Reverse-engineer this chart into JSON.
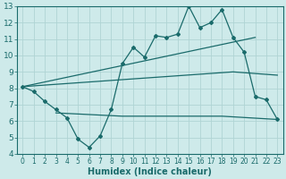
{
  "xlabel": "Humidex (Indice chaleur)",
  "bg_color": "#ceeaea",
  "line_color": "#1a6b6b",
  "grid_color": "#afd4d4",
  "xlim": [
    -0.5,
    23.5
  ],
  "ylim": [
    4,
    13
  ],
  "xticks": [
    0,
    1,
    2,
    3,
    4,
    5,
    6,
    7,
    8,
    9,
    10,
    11,
    12,
    13,
    14,
    15,
    16,
    17,
    18,
    19,
    20,
    21,
    22,
    23
  ],
  "yticks": [
    4,
    5,
    6,
    7,
    8,
    9,
    10,
    11,
    12,
    13
  ],
  "line1_x": [
    0,
    1,
    2,
    3,
    4,
    5,
    6,
    7,
    8,
    9,
    10,
    11,
    12,
    13,
    14,
    15,
    16,
    17,
    18,
    19,
    20,
    21,
    22,
    23
  ],
  "line1_y": [
    8.1,
    7.8,
    7.2,
    6.7,
    6.2,
    4.9,
    4.4,
    5.1,
    6.7,
    9.5,
    10.5,
    9.9,
    11.2,
    11.1,
    11.3,
    13.0,
    11.7,
    12.0,
    12.8,
    11.1,
    10.2,
    7.5,
    7.3,
    6.1
  ],
  "line2_x": [
    0,
    21
  ],
  "line2_y": [
    8.1,
    11.1
  ],
  "line3_x": [
    0,
    19,
    23
  ],
  "line3_y": [
    8.1,
    9.0,
    8.8
  ],
  "line4_x": [
    3,
    9,
    18,
    23
  ],
  "line4_y": [
    6.5,
    6.3,
    6.3,
    6.1
  ],
  "fontsize_label": 7,
  "fontsize_tick": 6
}
